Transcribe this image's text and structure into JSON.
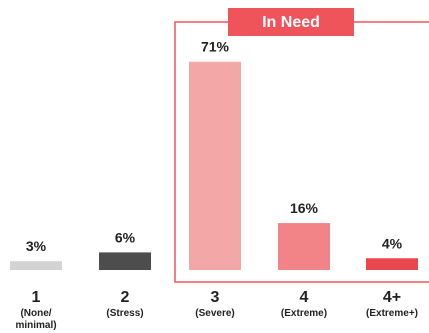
{
  "chart_data": {
    "type": "bar",
    "title": "",
    "xlabel": "",
    "ylabel": "",
    "ylim": [
      0,
      75
    ],
    "grid": false,
    "legend": "none",
    "categories": [
      {
        "number": "1",
        "sub": [
          "(None/",
          "minimal)"
        ]
      },
      {
        "number": "2",
        "sub": [
          "(Stress)"
        ]
      },
      {
        "number": "3",
        "sub": [
          "(Severe)"
        ]
      },
      {
        "number": "4",
        "sub": [
          "(Extreme)"
        ]
      },
      {
        "number": "4+",
        "sub": [
          "(Extreme+)"
        ]
      }
    ],
    "values": [
      3,
      6,
      71,
      16,
      4
    ],
    "value_labels": [
      "3%",
      "6%",
      "71%",
      "16%",
      "4%"
    ],
    "bar_colors": [
      "#d3d3d3",
      "#4d4d4d",
      "#f4a7a7",
      "#f28487",
      "#e8474e"
    ],
    "annotation": {
      "label": "In Need",
      "covers": [
        "3",
        "4",
        "4+"
      ],
      "color": "#f0545b"
    }
  }
}
